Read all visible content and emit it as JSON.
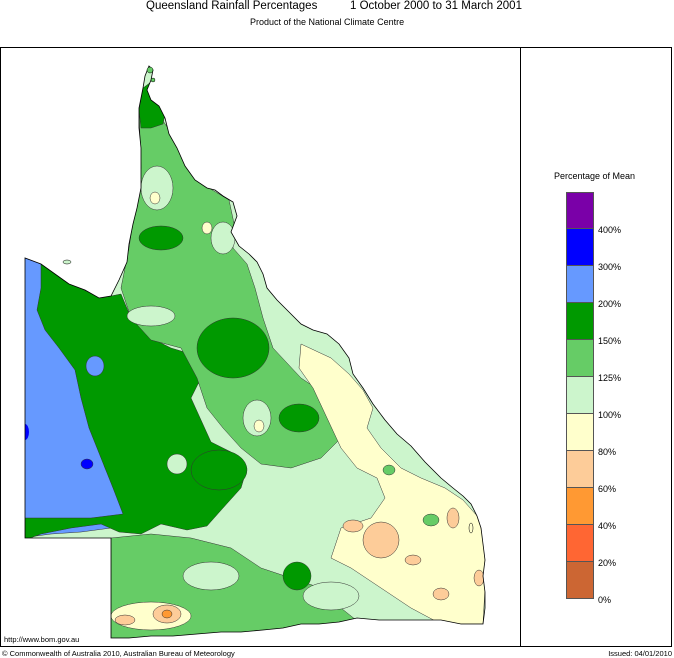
{
  "title": {
    "main": "Queensland Rainfall Percentages",
    "period": "1 October 2000 to 31 March 2001",
    "subtitle": "Product of the National Climate Centre"
  },
  "legend": {
    "title": "Percentage of Mean",
    "bands": [
      {
        "range": "400%+",
        "color": "#7a00a8"
      },
      {
        "range": "300-400%",
        "color": "#0000ff"
      },
      {
        "range": "200-300%",
        "color": "#6699ff"
      },
      {
        "range": "150-200%",
        "color": "#009900"
      },
      {
        "range": "125-150%",
        "color": "#66cc66"
      },
      {
        "range": "100-125%",
        "color": "#ccf5cc"
      },
      {
        "range": "80-100%",
        "color": "#ffffcc"
      },
      {
        "range": "60-80%",
        "color": "#fdcc99"
      },
      {
        "range": "40-60%",
        "color": "#ff9933"
      },
      {
        "range": "20-40%",
        "color": "#ff6633"
      },
      {
        "range": "0-20%",
        "color": "#cc6633"
      }
    ],
    "labels": [
      "400%",
      "300%",
      "200%",
      "150%",
      "125%",
      "100%",
      "80%",
      "60%",
      "40%",
      "20%",
      "0%"
    ]
  },
  "footer": {
    "url": "http://www.bom.gov.au",
    "copyright": "© Commonwealth of Australia 2010, Australian Bureau of Meteorology",
    "issued": "Issued: 04/01/2010"
  }
}
